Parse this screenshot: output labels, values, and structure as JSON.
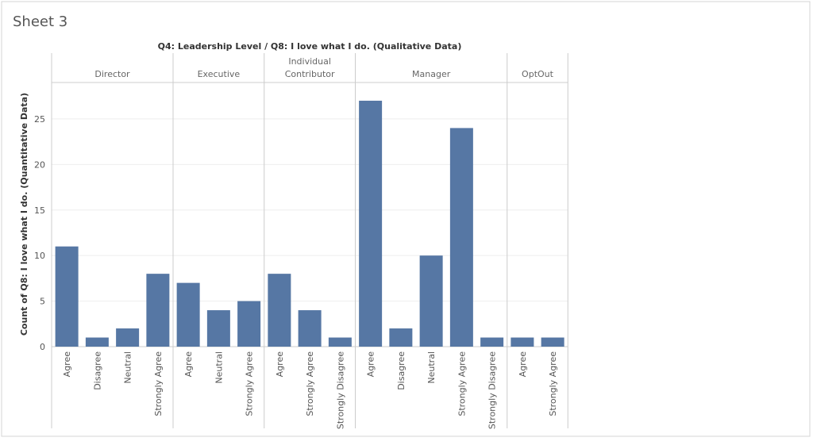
{
  "sheet_title": "Sheet 3",
  "chart_data": {
    "type": "bar",
    "title": "Q4: Leadership Level  /  Q8: I love what I do. (Qualitative Data)",
    "y_label": "Count of Q8: I love what I do. (Quantitative Data)",
    "color": "#5677a4",
    "ylim": [
      0,
      29
    ],
    "yticks": [
      0,
      5,
      10,
      15,
      20,
      25
    ],
    "grid": true,
    "groups": [
      {
        "name": "Director",
        "categories": [
          "Agree",
          "Disagree",
          "Neutral",
          "Strongly Agree"
        ],
        "values": [
          11,
          1,
          2,
          8
        ]
      },
      {
        "name": "Executive",
        "categories": [
          "Agree",
          "Neutral",
          "Strongly Agree"
        ],
        "values": [
          7,
          4,
          5
        ]
      },
      {
        "name": "Individual Contributor",
        "categories": [
          "Agree",
          "Strongly Agree",
          "Strongly Disagree"
        ],
        "values": [
          8,
          4,
          1
        ]
      },
      {
        "name": "Manager",
        "categories": [
          "Agree",
          "Disagree",
          "Neutral",
          "Strongly Agree",
          "Strongly Disagree"
        ],
        "values": [
          27,
          2,
          10,
          24,
          1
        ]
      },
      {
        "name": "OptOut",
        "categories": [
          "Agree",
          "Strongly Agree"
        ],
        "values": [
          1,
          1
        ]
      }
    ]
  }
}
